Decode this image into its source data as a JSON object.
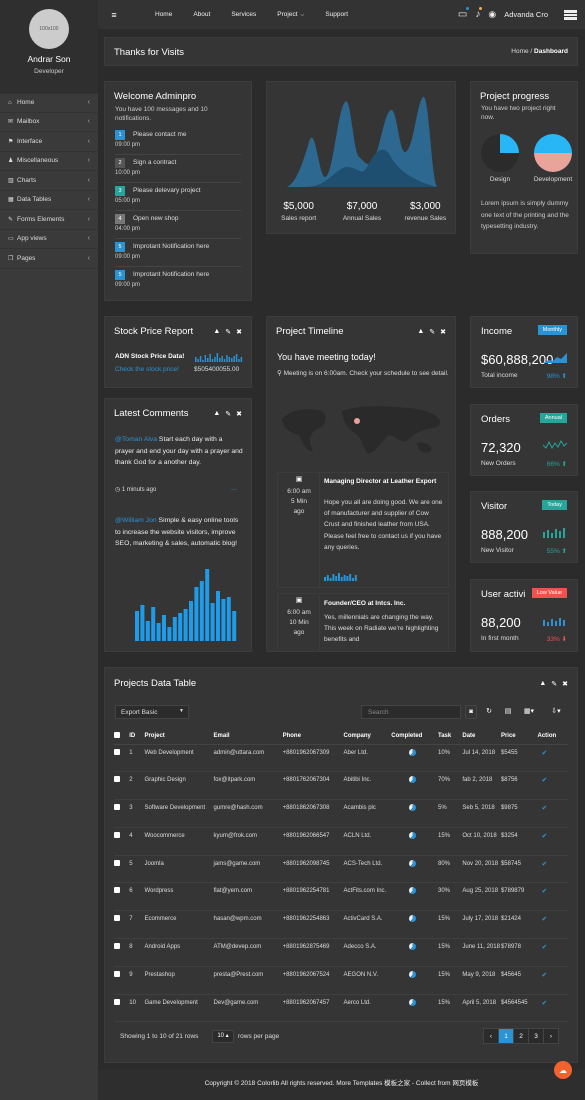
{
  "sidebar": {
    "avatar_text": "100x100",
    "name": "Andrar Son",
    "role": "Developer",
    "items": [
      {
        "icon": "⌂",
        "label": "Home"
      },
      {
        "icon": "✉",
        "label": "Mailbox"
      },
      {
        "icon": "⚑",
        "label": "Interface"
      },
      {
        "icon": "♟",
        "label": "Miscellaneous"
      },
      {
        "icon": "▥",
        "label": "Charts"
      },
      {
        "icon": "▦",
        "label": "Data Tables"
      },
      {
        "icon": "✎",
        "label": "Forms Elements"
      },
      {
        "icon": "▭",
        "label": "App views"
      },
      {
        "icon": "❐",
        "label": "Pages"
      }
    ]
  },
  "topbar": {
    "menu_icon": "≡",
    "links": [
      "Home",
      "About",
      "Services",
      "Project",
      "Support"
    ],
    "user": "Advanda Cro"
  },
  "page": {
    "title": "Thanks for Visits",
    "breadcrumb_home": "Home",
    "breadcrumb_sep": "/",
    "breadcrumb_current": "Dashboard"
  },
  "welcome": {
    "title": "Welcome Adminpro",
    "subtitle": "You have 100 messages and 10 notifications.",
    "notes": [
      {
        "num": "1",
        "text": "Please contact me",
        "time": "09:00 pm",
        "color": "blue"
      },
      {
        "num": "2",
        "text": "Sign a contract",
        "time": "10:00 pm",
        "color": "white"
      },
      {
        "num": "3",
        "text": "Please delevary project",
        "time": "05:00 pm",
        "color": "green"
      },
      {
        "num": "4",
        "text": "Open new shop",
        "time": "04:00 pm",
        "color": "gray"
      },
      {
        "num": "5",
        "text": "Improtant Notification here",
        "time": "09:00 pm",
        "color": "blue"
      },
      {
        "num": "5",
        "text": "Improtant Notification here",
        "time": "09:00 pm",
        "color": "blue"
      }
    ]
  },
  "sales": {
    "stats": [
      {
        "value": "$5,000",
        "label": "Sales report"
      },
      {
        "value": "$7,000",
        "label": "Annual Sales"
      },
      {
        "value": "$3,000",
        "label": "revenue Sales"
      }
    ]
  },
  "progress": {
    "title": "Project progress",
    "subtitle": "You have two project right now.",
    "pies": [
      {
        "label": "Design",
        "percent": 25
      },
      {
        "label": "Development",
        "percent": 25
      }
    ],
    "text": "Lorem ipsum is simply dummy one text of the printing and the typesetting industry."
  },
  "stock": {
    "title": "Stock Price Report",
    "name": "ADN Stock Price Data!",
    "link": "Check the stock price!",
    "value": "$505400055.00"
  },
  "comments": {
    "title": "Latest Comments",
    "c1_user": "@Toman Alva",
    "c1_text": " Start each day with a prayer and end your day with a prayer and thank God for a another day.",
    "c1_time": "1 minuts ago",
    "c1_more": "...",
    "c2_user": "@William Jon",
    "c2_text": " Simple & easy online tools to increase the website visitors, improve SEO, marketing & sales, automatic blog!"
  },
  "timeline": {
    "title": "Project Timeline",
    "meeting_title": "You have meeting today!",
    "meeting_text": "Meeting is on 6:00am. Check your schedule to see detail.",
    "e1_time": "6:00 am",
    "e1_ago1": "5 Min",
    "e1_ago2": "ago",
    "e1_title": "Managing Director at Leather Export",
    "e1_text": "Hope you all are doing good. We are one of manufacturer and supplier of Cow Crust and finished leather from USA. Please feel free to contact us if you have any queries.",
    "e2_time": "6:00 am",
    "e2_ago1": "10 Min",
    "e2_ago2": "ago",
    "e2_title": "Founder/CEO at Intcs. Inc.",
    "e2_text": "Yes, millennials are changing the way. This week on Radiate we're highlighting benefits and"
  },
  "widgets": [
    {
      "title": "Income",
      "pill": "Monthly",
      "pill_color": "#2a93d5",
      "value": "$60,888,200",
      "label": "Total income",
      "pct": "98%",
      "arrow": "⬆",
      "pct_color": "blue"
    },
    {
      "title": "Orders",
      "pill": "Annual",
      "pill_color": "#26a69a",
      "value": "72,320",
      "label": "New Orders",
      "pct": "66%",
      "arrow": "⬆",
      "pct_color": "green"
    },
    {
      "title": "Visitor",
      "pill": "Today",
      "pill_color": "#26a69a",
      "value": "888,200",
      "label": "New Visitor",
      "pct": "55%",
      "arrow": "⬆",
      "pct_color": "green"
    },
    {
      "title": "User activi",
      "pill": "Low Value",
      "pill_color": "#ef5350",
      "value": "88,200",
      "label": "In first month",
      "pct": "33%",
      "arrow": "⬇",
      "pct_color": "red"
    }
  ],
  "table": {
    "title": "Projects Data Table",
    "export": "Export Basic",
    "search_placeholder": "Search",
    "columns": [
      "ID",
      "Project",
      "Email",
      "Phone",
      "Company",
      "Completed",
      "Task",
      "Date",
      "Price",
      "Action"
    ],
    "rows": [
      {
        "id": "1",
        "project": "Web Development",
        "email": "admin@uttara.com",
        "phone": "+8801962067309",
        "company": "Aber Ltd.",
        "task": "10%",
        "date": "Jul 14, 2018",
        "price": "$5455"
      },
      {
        "id": "2",
        "project": "Graphic Design",
        "email": "fox@itpark.com",
        "phone": "+8801762067304",
        "company": "Abitibi Inc.",
        "task": "70%",
        "date": "fab 2, 2018",
        "price": "$8756"
      },
      {
        "id": "3",
        "project": "Software Development",
        "email": "gumre@hash.com",
        "phone": "+8801862067308",
        "company": "Acambis plc",
        "task": "5%",
        "date": "Seb 5, 2018",
        "price": "$9875"
      },
      {
        "id": "4",
        "project": "Woocommerce",
        "email": "kyum@frok.com",
        "phone": "+8801962066547",
        "company": "ACLN Ltd.",
        "task": "15%",
        "date": "Oct 10, 2018",
        "price": "$3254"
      },
      {
        "id": "5",
        "project": "Joomla",
        "email": "jams@game.com",
        "phone": "+8801962098745",
        "company": "ACS-Tech Ltd.",
        "task": "80%",
        "date": "Nov 20, 2018",
        "price": "$58745"
      },
      {
        "id": "6",
        "project": "Wordpress",
        "email": "flat@yem.com",
        "phone": "+8801962254781",
        "company": "ActFits.com Inc.",
        "task": "30%",
        "date": "Aug 25, 2018",
        "price": "$789879"
      },
      {
        "id": "7",
        "project": "Ecommerce",
        "email": "hasan@wpm.com",
        "phone": "+8801962254863",
        "company": "ActivCard S.A.",
        "task": "15%",
        "date": "July 17, 2018",
        "price": "$21424"
      },
      {
        "id": "8",
        "project": "Android Apps",
        "email": "ATM@devep.com",
        "phone": "+8801962875469",
        "company": "Adecco S.A.",
        "task": "15%",
        "date": "June 11, 2018",
        "price": "$78978"
      },
      {
        "id": "9",
        "project": "Prestashop",
        "email": "presta@Prest.com",
        "phone": "+8801962067524",
        "company": "AEGON N.V.",
        "task": "15%",
        "date": "May 9, 2018",
        "price": "$45645"
      },
      {
        "id": "10",
        "project": "Game Development",
        "email": "Dev@game.com",
        "phone": "+8801962067457",
        "company": "Aerco Ltd.",
        "task": "15%",
        "date": "April 5, 2018",
        "price": "$4564545"
      }
    ],
    "showing": "Showing 1 to 10 of 21 rows",
    "per_page_value": "10",
    "per_page_suffix": "rows per page",
    "pages": [
      "‹",
      "1",
      "2",
      "3",
      "›"
    ]
  },
  "footer": "Copyright © 2018 Colorlib All rights reserved. More Templates 模板之家 - Collect from 网页模板"
}
